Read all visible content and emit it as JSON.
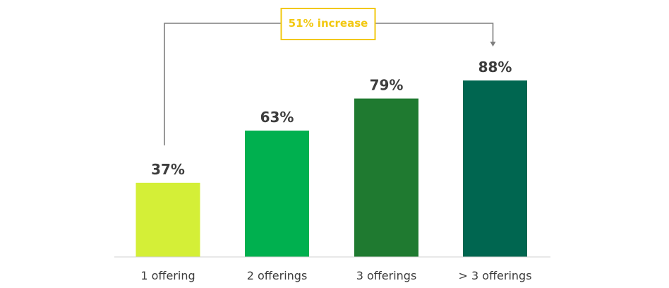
{
  "chart_data": {
    "type": "bar",
    "categories": [
      "1 offering",
      "2 offerings",
      "3 offerings",
      "> 3 offerings"
    ],
    "values": [
      37,
      63,
      79,
      88
    ],
    "value_labels": [
      "37%",
      "63%",
      "79%",
      "88%"
    ],
    "unit": "%",
    "ylim": [
      0,
      100
    ],
    "grid": false,
    "bar_colors": [
      "#d4ef37",
      "#00b04f",
      "#1f7a30",
      "#006650"
    ],
    "annotation": {
      "text": "51% increase",
      "from_category": "1 offering",
      "to_category": "> 3 offerings",
      "color": "#f2c811",
      "line_color": "#7f7f7f"
    }
  }
}
